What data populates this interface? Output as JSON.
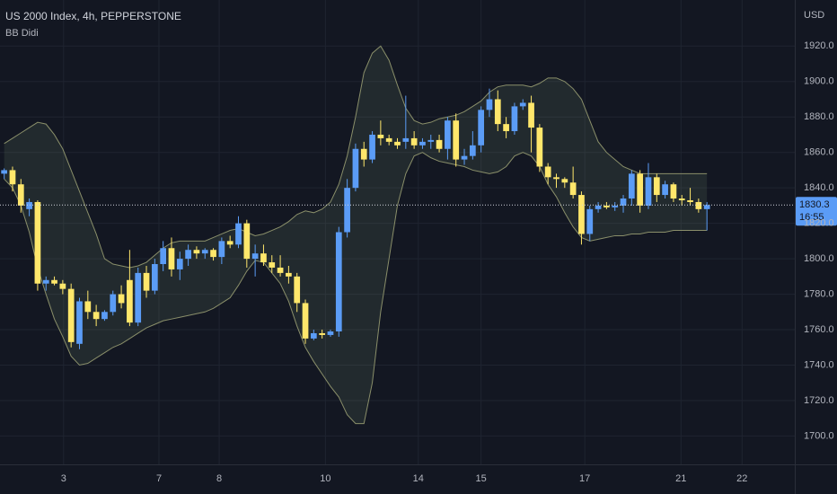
{
  "chart_data": {
    "type": "candlestick",
    "title": "US 2000 Index, 4h, PEPPERSTONE",
    "currency": "USD",
    "up_color": "#5b9cf6",
    "down_color": "#ffe76b",
    "open": [
      1848,
      1850,
      1842,
      1828,
      1832,
      1786,
      1788,
      1786,
      1783,
      1752,
      1776,
      1770,
      1766,
      1770,
      1780,
      1788,
      1764,
      1792,
      1782,
      1797,
      1806,
      1794,
      1800,
      1805,
      1803,
      1805,
      1801,
      1810,
      1808,
      1820,
      1800,
      1803,
      1798,
      1795,
      1792,
      1790,
      1775,
      1755,
      1758,
      1757,
      1759,
      1815,
      1840,
      1862,
      1856,
      1870,
      1868,
      1866,
      1866,
      1868,
      1864,
      1866,
      1867,
      1862,
      1878,
      1856,
      1858,
      1864,
      1884,
      1890,
      1876,
      1872,
      1886,
      1888,
      1874,
      1852,
      1846,
      1845,
      1843,
      1836,
      1814,
      1828,
      1830,
      1829,
      1830,
      1834,
      1848,
      1830,
      1846,
      1836,
      1842,
      1834,
      1833,
      1832,
      1828
    ],
    "high": [
      1851,
      1852,
      1845,
      1834,
      1833,
      1790,
      1790,
      1788,
      1786,
      1778,
      1782,
      1774,
      1771,
      1782,
      1785,
      1805,
      1795,
      1796,
      1800,
      1810,
      1812,
      1804,
      1808,
      1807,
      1806,
      1806,
      1812,
      1813,
      1824,
      1822,
      1808,
      1808,
      1802,
      1802,
      1796,
      1792,
      1777,
      1760,
      1760,
      1760,
      1818,
      1845,
      1865,
      1866,
      1872,
      1878,
      1870,
      1868,
      1892,
      1872,
      1868,
      1870,
      1870,
      1880,
      1882,
      1862,
      1872,
      1886,
      1896,
      1895,
      1880,
      1888,
      1890,
      1892,
      1876,
      1854,
      1848,
      1846,
      1852,
      1838,
      1830,
      1832,
      1832,
      1832,
      1836,
      1850,
      1850,
      1854,
      1848,
      1844,
      1843,
      1836,
      1840,
      1834,
      1832
    ],
    "low": [
      1845,
      1838,
      1826,
      1824,
      1782,
      1782,
      1785,
      1780,
      1750,
      1749,
      1766,
      1762,
      1765,
      1768,
      1772,
      1762,
      1762,
      1778,
      1780,
      1793,
      1790,
      1788,
      1796,
      1800,
      1800,
      1799,
      1797,
      1806,
      1806,
      1795,
      1790,
      1796,
      1792,
      1790,
      1786,
      1770,
      1752,
      1754,
      1755,
      1756,
      1756,
      1812,
      1838,
      1852,
      1854,
      1864,
      1864,
      1862,
      1862,
      1862,
      1862,
      1862,
      1860,
      1856,
      1852,
      1853,
      1856,
      1860,
      1880,
      1872,
      1868,
      1870,
      1884,
      1860,
      1849,
      1842,
      1840,
      1840,
      1834,
      1808,
      1810,
      1826,
      1828,
      1827,
      1826,
      1830,
      1826,
      1828,
      1832,
      1834,
      1832,
      1830,
      1830,
      1826,
      1816
    ],
    "close": [
      1850,
      1842,
      1830,
      1832,
      1786,
      1788,
      1786,
      1783,
      1753,
      1776,
      1770,
      1766,
      1770,
      1780,
      1775,
      1764,
      1792,
      1782,
      1797,
      1806,
      1794,
      1800,
      1805,
      1803,
      1805,
      1801,
      1810,
      1808,
      1820,
      1800,
      1803,
      1798,
      1795,
      1792,
      1790,
      1775,
      1755,
      1758,
      1757,
      1759,
      1815,
      1840,
      1862,
      1856,
      1870,
      1868,
      1866,
      1864,
      1868,
      1864,
      1866,
      1867,
      1862,
      1878,
      1856,
      1858,
      1864,
      1884,
      1890,
      1876,
      1872,
      1886,
      1888,
      1874,
      1852,
      1846,
      1845,
      1843,
      1836,
      1814,
      1828,
      1830,
      1829,
      1830,
      1834,
      1848,
      1830,
      1846,
      1836,
      1842,
      1834,
      1833,
      1832,
      1828,
      1830.3
    ],
    "bands": {
      "name": "BB Didi",
      "color": "#8a8f6a",
      "upper": [
        1865,
        1868,
        1871,
        1874,
        1877,
        1876,
        1870,
        1862,
        1850,
        1838,
        1826,
        1814,
        1800,
        1797,
        1796,
        1795,
        1796,
        1798,
        1802,
        1806,
        1809,
        1810,
        1810,
        1810,
        1810,
        1812,
        1814,
        1816,
        1817,
        1815,
        1813,
        1814,
        1816,
        1818,
        1821,
        1825,
        1827,
        1826,
        1828,
        1832,
        1842,
        1858,
        1880,
        1905,
        1916,
        1920,
        1912,
        1898,
        1885,
        1878,
        1876,
        1877,
        1879,
        1880,
        1881,
        1883,
        1886,
        1889,
        1894,
        1897,
        1898,
        1898,
        1898,
        1897,
        1899,
        1902,
        1902,
        1900,
        1896,
        1890,
        1878,
        1866,
        1860,
        1856,
        1852,
        1850,
        1848,
        1848,
        1848,
        1848,
        1848,
        1848,
        1848,
        1848,
        1848
      ],
      "lower": [
        1845,
        1840,
        1830,
        1815,
        1795,
        1780,
        1766,
        1756,
        1745,
        1740,
        1741,
        1744,
        1747,
        1750,
        1752,
        1755,
        1758,
        1761,
        1763,
        1765,
        1766,
        1767,
        1768,
        1769,
        1770,
        1772,
        1775,
        1778,
        1785,
        1793,
        1799,
        1798,
        1792,
        1786,
        1776,
        1762,
        1750,
        1742,
        1735,
        1728,
        1722,
        1712,
        1707,
        1707,
        1730,
        1770,
        1800,
        1830,
        1848,
        1858,
        1860,
        1857,
        1855,
        1854,
        1853,
        1852,
        1850,
        1849,
        1848,
        1849,
        1852,
        1858,
        1860,
        1858,
        1852,
        1842,
        1835,
        1826,
        1818,
        1812,
        1810,
        1811,
        1812,
        1813,
        1813,
        1814,
        1814,
        1815,
        1815,
        1815,
        1816,
        1816,
        1816,
        1816,
        1816
      ]
    },
    "last_price": 1830.3,
    "countdown": "16:55",
    "xlim": [
      -0.5,
      94.5
    ],
    "xticks": [
      {
        "value": 7.1,
        "label": "3"
      },
      {
        "value": 18.5,
        "label": "7"
      },
      {
        "value": 25.7,
        "label": "8"
      },
      {
        "value": 38.4,
        "label": "10"
      },
      {
        "value": 49.5,
        "label": "14"
      },
      {
        "value": 57.0,
        "label": "15"
      },
      {
        "value": 69.4,
        "label": "17"
      },
      {
        "value": 80.9,
        "label": "21"
      },
      {
        "value": 88.2,
        "label": "22"
      }
    ],
    "ylim": [
      1684,
      1946
    ],
    "yticks": [
      {
        "value": 1700,
        "label": "1700.0"
      },
      {
        "value": 1720,
        "label": "1720.0"
      },
      {
        "value": 1740,
        "label": "1740.0"
      },
      {
        "value": 1760,
        "label": "1760.0"
      },
      {
        "value": 1780,
        "label": "1780.0"
      },
      {
        "value": 1800,
        "label": "1800.0"
      },
      {
        "value": 1820,
        "label": "1820.0"
      },
      {
        "value": 1840,
        "label": "1840.0"
      },
      {
        "value": 1860,
        "label": "1860.0"
      },
      {
        "value": 1880,
        "label": "1880.0"
      },
      {
        "value": 1900,
        "label": "1900.0"
      },
      {
        "value": 1920,
        "label": "1920.0"
      }
    ],
    "grid": true
  }
}
